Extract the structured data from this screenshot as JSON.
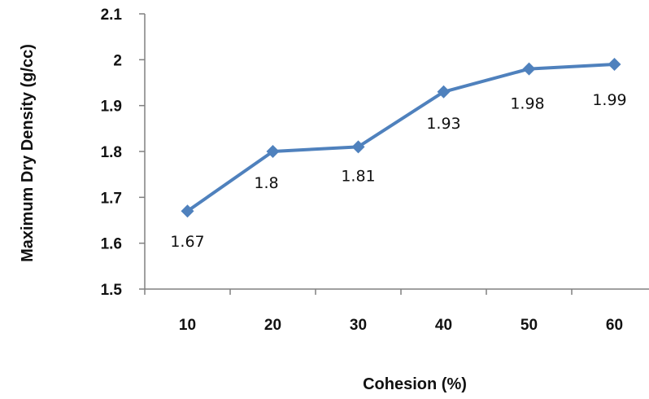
{
  "chart_data": {
    "type": "line",
    "title": "",
    "xlabel": "Cohesion (%)",
    "ylabel": "Maximum Dry Density (g/cc)",
    "categories": [
      "10",
      "20",
      "30",
      "40",
      "50",
      "60"
    ],
    "series": [
      {
        "values": [
          1.67,
          1.8,
          1.81,
          1.93,
          1.98,
          1.99
        ],
        "labels": [
          "1.67",
          "1.8",
          "1.81",
          "1.93",
          "1.98",
          "1.99"
        ],
        "color": "#4F81BD",
        "marker": "diamond"
      }
    ],
    "ylim": [
      1.5,
      2.1
    ],
    "yticks": [
      "1.5",
      "1.6",
      "1.7",
      "1.8",
      "1.9",
      "2",
      "2.1"
    ],
    "grid": false,
    "legend": "none"
  }
}
